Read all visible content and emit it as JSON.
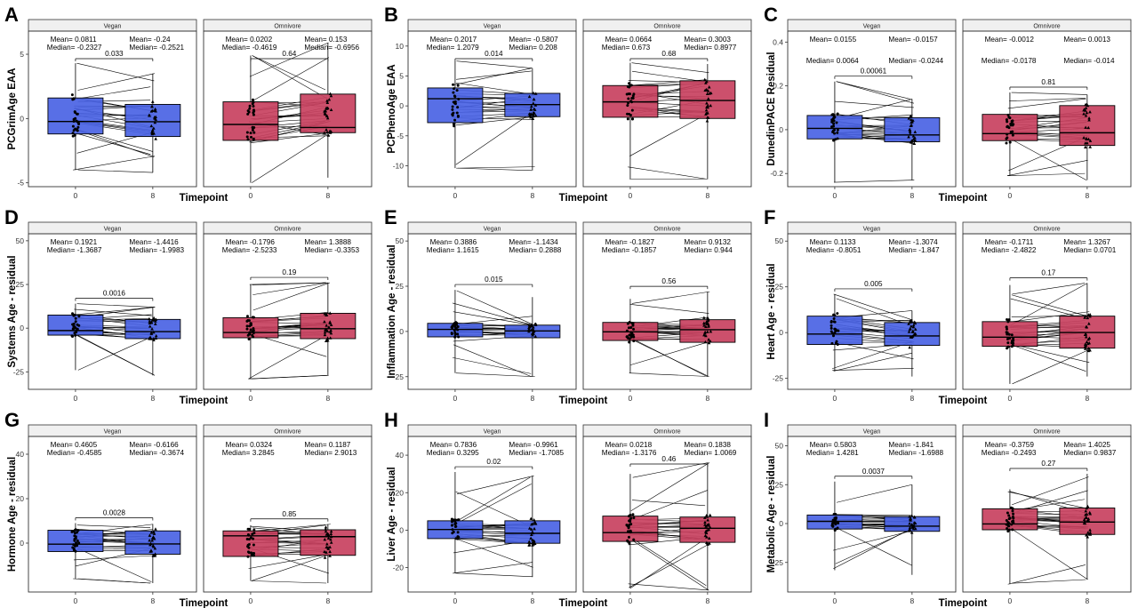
{
  "colors": {
    "vegan": "#4a63e4",
    "omnivore": "#c8415f",
    "strip_fill": "#f0f0f0",
    "line": "#000000"
  },
  "chart_data": [
    {
      "panel": "A",
      "type": "box",
      "ylabel": "PCGrimAge EAA",
      "xlabel": "Timepoint",
      "categories": [
        "0",
        "8"
      ],
      "ylim": [
        -5.3,
        6.8
      ],
      "yticks": [
        -5,
        0,
        5
      ],
      "groups": [
        {
          "name": "Vegan",
          "mean": [
            "Mean= 0.0811",
            "Mean= -0.24"
          ],
          "median": [
            "Median= -0.2327",
            "Median= -0.2521"
          ],
          "p": "0.033",
          "boxes": [
            {
              "q1": -1.2,
              "median": -0.23,
              "q3": 1.6,
              "min": -4.0,
              "max": 4.3
            },
            {
              "q1": -1.4,
              "median": -0.25,
              "q3": 1.1,
              "min": -4.2,
              "max": 3.5
            }
          ]
        },
        {
          "name": "Omnivore",
          "mean": [
            "Mean= 0.0202",
            "Mean= 0.153"
          ],
          "median": [
            "Median= -0.4619",
            "Median= -0.6956"
          ],
          "p": "0.64",
          "boxes": [
            {
              "q1": -1.7,
              "median": -0.46,
              "q3": 1.3,
              "min": -5.0,
              "max": 4.9
            },
            {
              "q1": -1.1,
              "median": -0.7,
              "q3": 1.9,
              "min": -4.6,
              "max": 5.9
            }
          ]
        }
      ]
    },
    {
      "panel": "B",
      "type": "box",
      "ylabel": "PCPhenoAge EAA",
      "xlabel": "Timepoint",
      "categories": [
        "0",
        "8"
      ],
      "ylim": [
        -13.5,
        12.5
      ],
      "yticks": [
        -10,
        -5,
        0,
        5,
        10
      ],
      "groups": [
        {
          "name": "Vegan",
          "mean": [
            "Mean= 0.2017",
            "Mean= -0.5807"
          ],
          "median": [
            "Median= 1.2079",
            "Median= 0.208"
          ],
          "p": "0.014",
          "boxes": [
            {
              "q1": -2.8,
              "median": 1.2,
              "q3": 3.0,
              "min": -10.4,
              "max": 7.5
            },
            {
              "q1": -1.8,
              "median": 0.21,
              "q3": 2.1,
              "min": -10.8,
              "max": 6.3
            }
          ]
        },
        {
          "name": "Omnivore",
          "mean": [
            "Mean= 0.0664",
            "Mean= 0.3003"
          ],
          "median": [
            "Median= 0.673",
            "Median= 0.8977"
          ],
          "p": "0.68",
          "boxes": [
            {
              "q1": -1.9,
              "median": 0.67,
              "q3": 3.4,
              "min": -12.2,
              "max": 7.2
            },
            {
              "q1": -2.1,
              "median": 0.9,
              "q3": 4.2,
              "min": -12.2,
              "max": 7.0
            }
          ]
        }
      ]
    },
    {
      "panel": "C",
      "type": "box",
      "ylabel": "DunedinPACE Residual",
      "xlabel": "Timepoint",
      "categories": [
        "0",
        "8"
      ],
      "ylim": [
        -0.26,
        0.45
      ],
      "yticks": [
        -0.2,
        0.0,
        0.2,
        0.4
      ],
      "groups": [
        {
          "name": "Vegan",
          "mean": [
            "Mean= 0.0155",
            "Mean= -0.0157"
          ],
          "median": [
            "Median= 0.0064",
            "Median= -0.0244"
          ],
          "p": "0.00061",
          "boxes": [
            {
              "q1": -0.042,
              "median": 0.006,
              "q3": 0.065,
              "min": -0.24,
              "max": 0.22
            },
            {
              "q1": -0.055,
              "median": -0.024,
              "q3": 0.055,
              "min": -0.23,
              "max": 0.14
            }
          ]
        },
        {
          "name": "Omnivore",
          "mean": [
            "Mean= -0.0012",
            "Mean= 0.0013"
          ],
          "median": [
            "Median= -0.0178",
            "Median= -0.014"
          ],
          "p": "0.81",
          "boxes": [
            {
              "q1": -0.05,
              "median": -0.018,
              "q3": 0.07,
              "min": -0.21,
              "max": 0.17
            },
            {
              "q1": -0.072,
              "median": -0.014,
              "q3": 0.11,
              "min": -0.23,
              "max": 0.16
            }
          ]
        }
      ]
    },
    {
      "panel": "D",
      "type": "box",
      "ylabel": "Systems Age - residual",
      "xlabel": "Timepoint",
      "categories": [
        "0",
        "8"
      ],
      "ylim": [
        -35,
        54
      ],
      "yticks": [
        -25,
        0,
        25,
        50
      ],
      "groups": [
        {
          "name": "Vegan",
          "mean": [
            "Mean= 0.1921",
            "Mean= -1.4416"
          ],
          "median": [
            "Median= -1.3687",
            "Median= -1.9983"
          ],
          "p": "0.0016",
          "boxes": [
            {
              "q1": -4.0,
              "median": -1.37,
              "q3": 7.5,
              "min": -24.0,
              "max": 14.0
            },
            {
              "q1": -6.0,
              "median": -2.0,
              "q3": 5.0,
              "min": -27.0,
              "max": 12.0
            }
          ]
        },
        {
          "name": "Omnivore",
          "mean": [
            "Mean= -0.1796",
            "Mean= 1.3888"
          ],
          "median": [
            "Median= -2.5233",
            "Median= -0.3353"
          ],
          "p": "0.19",
          "boxes": [
            {
              "q1": -5.5,
              "median": -2.5,
              "q3": 6.0,
              "min": -29.0,
              "max": 25.0
            },
            {
              "q1": -6.0,
              "median": -0.34,
              "q3": 8.5,
              "min": -27.0,
              "max": 26.0
            }
          ]
        }
      ]
    },
    {
      "panel": "E",
      "type": "box",
      "ylabel": "Inflammation Age - residual",
      "xlabel": "Timepoint",
      "categories": [
        "0",
        "8"
      ],
      "ylim": [
        -32,
        54
      ],
      "yticks": [
        -25,
        0,
        25,
        50
      ],
      "groups": [
        {
          "name": "Vegan",
          "mean": [
            "Mean= 0.3886",
            "Mean= -1.1434"
          ],
          "median": [
            "Median= 1.1615",
            "Median= 0.2888"
          ],
          "p": "0.015",
          "boxes": [
            {
              "q1": -3.0,
              "median": 1.16,
              "q3": 4.5,
              "min": -23.0,
              "max": 23.0
            },
            {
              "q1": -3.5,
              "median": 0.29,
              "q3": 3.5,
              "min": -25.0,
              "max": 19.0
            }
          ]
        },
        {
          "name": "Omnivore",
          "mean": [
            "Mean= -0.1827",
            "Mean= 0.9132"
          ],
          "median": [
            "Median= -0.1857",
            "Median= 0.944"
          ],
          "p": "0.56",
          "boxes": [
            {
              "q1": -5.0,
              "median": -0.19,
              "q3": 5.0,
              "min": -23.0,
              "max": 18.0
            },
            {
              "q1": -6.0,
              "median": 0.94,
              "q3": 6.5,
              "min": -25.0,
              "max": 22.0
            }
          ]
        }
      ]
    },
    {
      "panel": "F",
      "type": "box",
      "ylabel": "Heart Age - residual",
      "xlabel": "Timepoint",
      "categories": [
        "0",
        "8"
      ],
      "ylim": [
        -31,
        54
      ],
      "yticks": [
        -25,
        0,
        25,
        50
      ],
      "groups": [
        {
          "name": "Vegan",
          "mean": [
            "Mean= 0.1133",
            "Mean= -1.3074"
          ],
          "median": [
            "Median= -0.8051",
            "Median= -1.847"
          ],
          "p": "0.005",
          "boxes": [
            {
              "q1": -6.5,
              "median": -0.8,
              "q3": 9.0,
              "min": -21.0,
              "max": 21.0
            },
            {
              "q1": -7.0,
              "median": -1.85,
              "q3": 5.5,
              "min": -24.0,
              "max": 12.0
            }
          ]
        },
        {
          "name": "Omnivore",
          "mean": [
            "Mean= -0.1711",
            "Mean= 1.3267"
          ],
          "median": [
            "Median= -2.4822",
            "Median= 0.0701"
          ],
          "p": "0.17",
          "boxes": [
            {
              "q1": -7.5,
              "median": -2.5,
              "q3": 6.0,
              "min": -28.0,
              "max": 26.0
            },
            {
              "q1": -8.5,
              "median": 0.07,
              "q3": 9.0,
              "min": -24.0,
              "max": 27.0
            }
          ]
        }
      ]
    },
    {
      "panel": "G",
      "type": "box",
      "ylabel": "Hormone Age - residual",
      "xlabel": "Timepoint",
      "categories": [
        "0",
        "8"
      ],
      "ylim": [
        -22,
        48
      ],
      "yticks": [
        0,
        20,
        40
      ],
      "groups": [
        {
          "name": "Vegan",
          "mean": [
            "Mean= 0.4605",
            "Mean= -0.6166"
          ],
          "median": [
            "Median= -0.4585",
            "Median= -0.3674"
          ],
          "p": "0.0028",
          "boxes": [
            {
              "q1": -3.8,
              "median": -0.46,
              "q3": 5.8,
              "min": -16.0,
              "max": 9.0
            },
            {
              "q1": -5.0,
              "median": -0.37,
              "q3": 5.5,
              "min": -18.0,
              "max": 8.5
            }
          ]
        },
        {
          "name": "Omnivore",
          "mean": [
            "Mean= 0.0324",
            "Mean= 0.1187"
          ],
          "median": [
            "Median= 3.2845",
            "Median= 2.9013"
          ],
          "p": "0.85",
          "boxes": [
            {
              "q1": -6.0,
              "median": 3.28,
              "q3": 5.5,
              "min": -17.0,
              "max": 8.0
            },
            {
              "q1": -5.5,
              "median": 2.9,
              "q3": 6.0,
              "min": -18.0,
              "max": 8.5
            }
          ]
        }
      ]
    },
    {
      "panel": "H",
      "type": "box",
      "ylabel": "Liver Age - residual",
      "xlabel": "Timepoint",
      "categories": [
        "0",
        "8"
      ],
      "ylim": [
        -33,
        50
      ],
      "yticks": [
        -20,
        0,
        20,
        40
      ],
      "groups": [
        {
          "name": "Vegan",
          "mean": [
            "Mean= 0.7836",
            "Mean= -0.9961"
          ],
          "median": [
            "Median= 0.3295",
            "Median= -1.7085"
          ],
          "p": "0.02",
          "boxes": [
            {
              "q1": -4.5,
              "median": 0.33,
              "q3": 5.0,
              "min": -23.0,
              "max": 31.0
            },
            {
              "q1": -7.0,
              "median": -1.7,
              "q3": 5.0,
              "min": -25.0,
              "max": 29.0
            }
          ]
        },
        {
          "name": "Omnivore",
          "mean": [
            "Mean= 0.0218",
            "Mean= 0.1838"
          ],
          "median": [
            "Median= -1.3176",
            "Median= 1.0069"
          ],
          "p": "0.46",
          "boxes": [
            {
              "q1": -6.0,
              "median": -1.3,
              "q3": 7.5,
              "min": -31.0,
              "max": 30.0
            },
            {
              "q1": -6.5,
              "median": 1.0,
              "q3": 7.0,
              "min": -32.0,
              "max": 36.0
            }
          ]
        }
      ]
    },
    {
      "panel": "I",
      "type": "box",
      "ylabel": "Metabolic Age - residual",
      "xlabel": "Timepoint",
      "categories": [
        "0",
        "8"
      ],
      "ylim": [
        -44,
        56
      ],
      "yticks": [
        -25,
        0,
        25,
        50
      ],
      "groups": [
        {
          "name": "Vegan",
          "mean": [
            "Mean= 0.5803",
            "Mean= -1.841"
          ],
          "median": [
            "Median= 1.4281",
            "Median= -1.6988"
          ],
          "p": "0.0037",
          "boxes": [
            {
              "q1": -3.5,
              "median": 1.43,
              "q3": 5.5,
              "min": -30.0,
              "max": 27.0
            },
            {
              "q1": -5.0,
              "median": -1.7,
              "q3": 4.5,
              "min": -33.0,
              "max": 25.0
            }
          ]
        },
        {
          "name": "Omnivore",
          "mean": [
            "Mean= -0.3759",
            "Mean= 1.4025"
          ],
          "median": [
            "Median= -0.2493",
            "Median= 0.9837"
          ],
          "p": "0.27",
          "boxes": [
            {
              "q1": -4.0,
              "median": -0.25,
              "q3": 9.5,
              "min": -39.0,
              "max": 22.0
            },
            {
              "q1": -7.0,
              "median": 0.98,
              "q3": 10.0,
              "min": -36.0,
              "max": 32.0
            }
          ]
        }
      ]
    }
  ]
}
